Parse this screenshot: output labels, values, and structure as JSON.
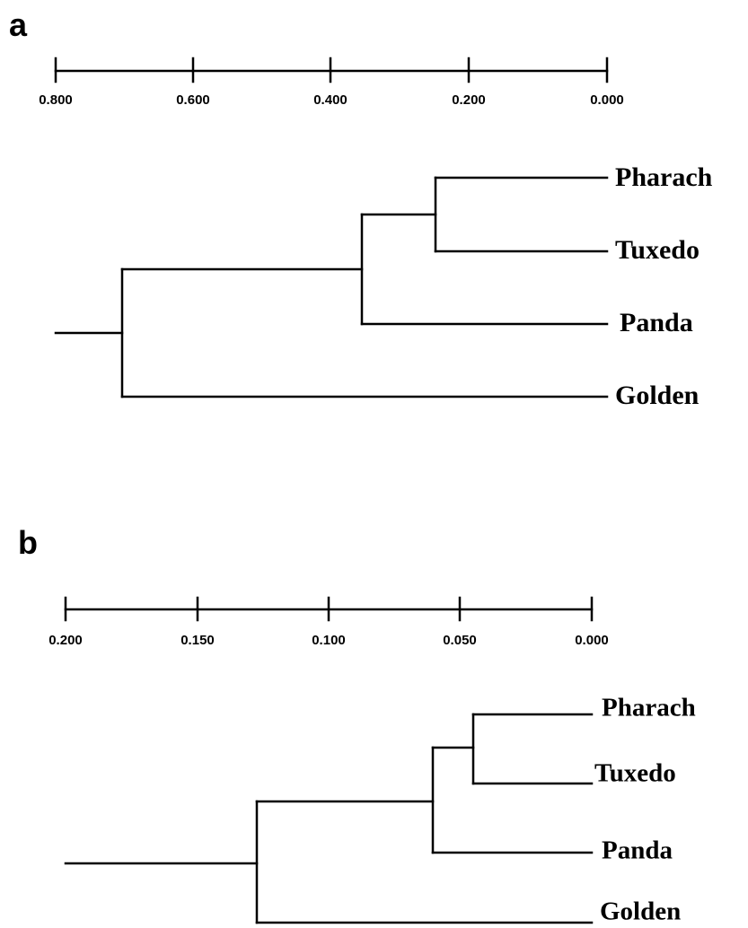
{
  "panels": [
    {
      "label": "a",
      "scale": {
        "ticks": [
          "0.800",
          "0.600",
          "0.400",
          "0.200",
          "0.000"
        ]
      },
      "tree": {
        "leaves": [
          "Pharach",
          "Tuxedo",
          "Panda",
          "Golden"
        ]
      }
    },
    {
      "label": "b",
      "scale": {
        "ticks": [
          "0.200",
          "0.150",
          "0.100",
          "0.050",
          "0.000"
        ]
      },
      "tree": {
        "leaves": [
          "Pharach",
          "Tuxedo",
          "Panda",
          "Golden"
        ]
      }
    }
  ]
}
